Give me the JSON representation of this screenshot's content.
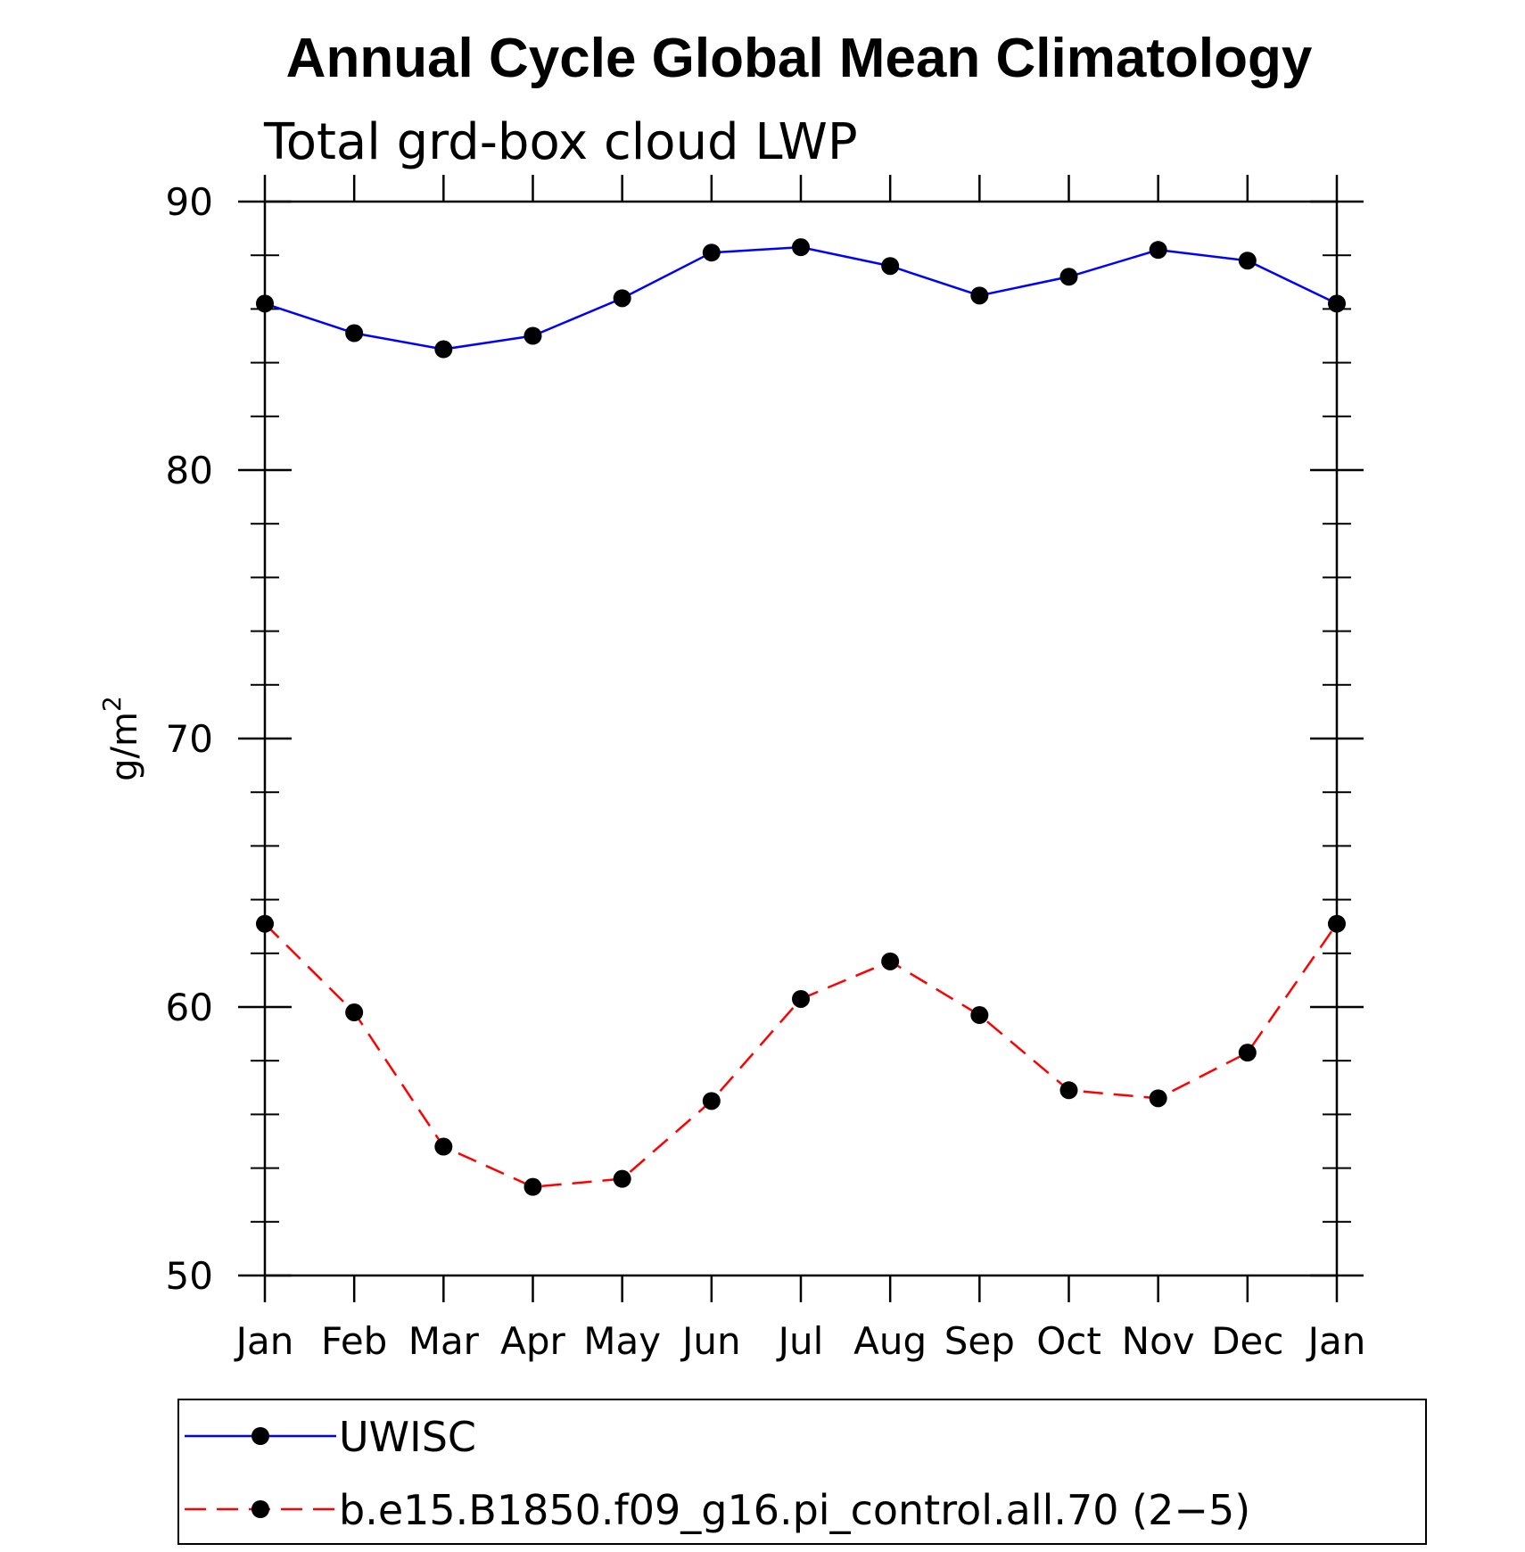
{
  "chart_data": {
    "type": "line",
    "title": "Annual Cycle Global Mean Climatology",
    "subtitle": "Total grd-box cloud LWP",
    "xlabel": "",
    "ylabel_base": "g/m",
    "ylabel_sup": "2",
    "categories": [
      "Jan",
      "Feb",
      "Mar",
      "Apr",
      "May",
      "Jun",
      "Jul",
      "Aug",
      "Sep",
      "Oct",
      "Nov",
      "Dec",
      "Jan"
    ],
    "ylim": [
      50,
      90
    ],
    "yticks": [
      50,
      60,
      70,
      80,
      90
    ],
    "y_minor_step": 2,
    "grid": false,
    "legend_position": "bottom",
    "series": [
      {
        "name": "UWISC",
        "color": "#0000ff",
        "line_style": "solid",
        "marker": "filled-circle",
        "marker_color": "#000000",
        "values": [
          86.2,
          85.1,
          84.5,
          85.0,
          86.4,
          88.1,
          88.3,
          87.6,
          86.5,
          87.2,
          88.2,
          87.8,
          86.2
        ]
      },
      {
        "name": "b.e15.B1850.f09_g16.pi_control.all.70 (2−5)",
        "color": "#ff0000",
        "line_style": "dashed",
        "marker": "filled-circle",
        "marker_color": "#000000",
        "values": [
          63.1,
          59.8,
          54.8,
          53.3,
          53.6,
          56.5,
          60.3,
          61.7,
          59.7,
          56.9,
          56.6,
          58.3,
          63.1
        ]
      }
    ]
  }
}
